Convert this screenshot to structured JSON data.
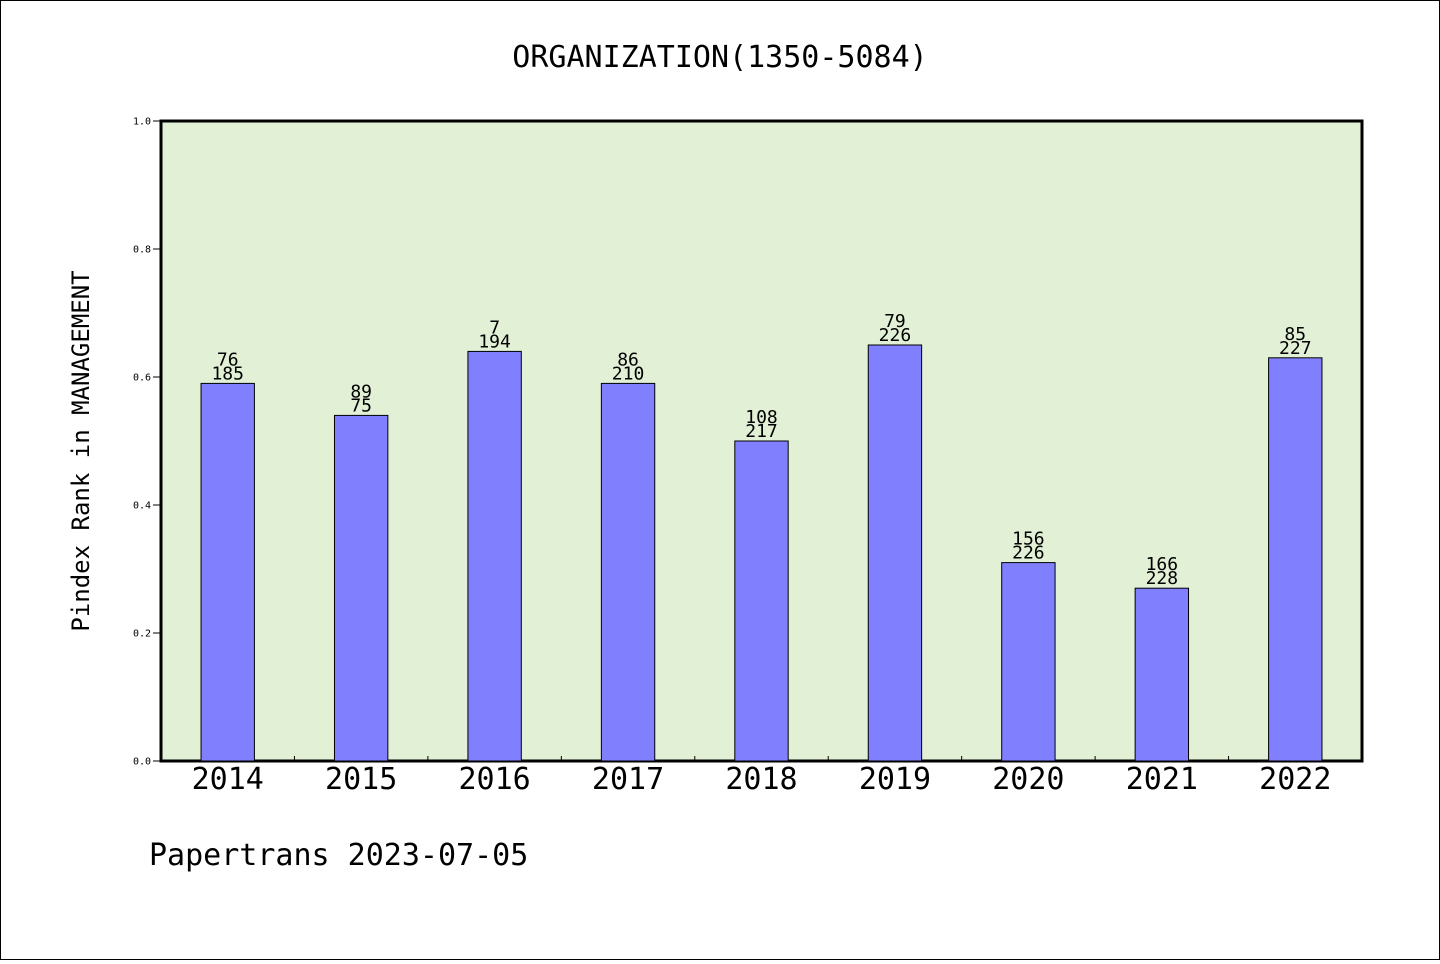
{
  "chart_data": {
    "type": "bar",
    "title": "ORGANIZATION(1350-5084)",
    "ylabel": "Pindex Rank in MANAGEMENT",
    "xlabel": "",
    "footer": "Papertrans 2023-07-05",
    "ylim": [
      0,
      1.0
    ],
    "yticks": [
      "0.0",
      "0.2",
      "0.4",
      "0.6",
      "0.8",
      "1.0"
    ],
    "categories": [
      "2014",
      "2015",
      "2016",
      "2017",
      "2018",
      "2019",
      "2020",
      "2021",
      "2022"
    ],
    "values": [
      0.59,
      0.54,
      0.64,
      0.59,
      0.5,
      0.65,
      0.31,
      0.27,
      0.63
    ],
    "labels_top": [
      "76",
      "89",
      "7",
      "86",
      "108",
      "79",
      "156",
      "166",
      "85"
    ],
    "labels_bottom": [
      "185",
      "75",
      "194",
      "210",
      "217",
      "226",
      "226",
      "228",
      "227"
    ],
    "grid": false,
    "colors": {
      "bar": "#8080ff",
      "plot_background": "#e2f0d6",
      "axis": "#000000"
    }
  }
}
